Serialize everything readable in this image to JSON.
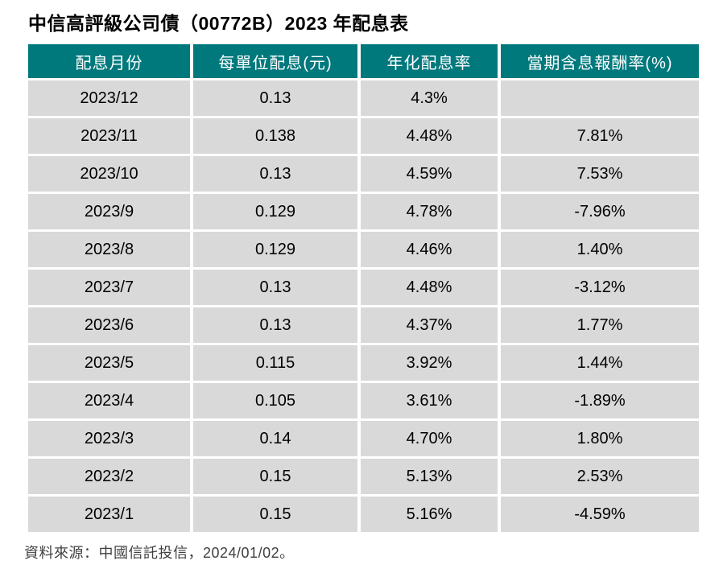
{
  "page": {
    "title": "中信高評級公司債（00772B）2023 年配息表",
    "source_note": "資料來源：中國信託投信，2024/01/02。"
  },
  "colors": {
    "page_bg": "#FFFFFF",
    "header_bg": "#00797D",
    "header_text": "#FFFFFF",
    "row_bg": "#D9D9D9",
    "body_text": "#000000",
    "title_color": "#000000",
    "note_text": "#404040"
  },
  "chart_data": {
    "type": "table",
    "title": "中信高評級公司債（00772B）2023 年配息表",
    "columns": [
      "配息月份",
      "每單位配息(元)",
      "年化配息率",
      "當期含息報酬率(%)"
    ],
    "rows": [
      {
        "month": "2023/12",
        "dividend_per_unit": "0.13",
        "annualized_yield": "4.3%",
        "period_total_return": ""
      },
      {
        "month": "2023/11",
        "dividend_per_unit": "0.138",
        "annualized_yield": "4.48%",
        "period_total_return": "7.81%"
      },
      {
        "month": "2023/10",
        "dividend_per_unit": "0.13",
        "annualized_yield": "4.59%",
        "period_total_return": "7.53%"
      },
      {
        "month": "2023/9",
        "dividend_per_unit": "0.129",
        "annualized_yield": "4.78%",
        "period_total_return": "-7.96%"
      },
      {
        "month": "2023/8",
        "dividend_per_unit": "0.129",
        "annualized_yield": "4.46%",
        "period_total_return": "1.40%"
      },
      {
        "month": "2023/7",
        "dividend_per_unit": "0.13",
        "annualized_yield": "4.48%",
        "period_total_return": "-3.12%"
      },
      {
        "month": "2023/6",
        "dividend_per_unit": "0.13",
        "annualized_yield": "4.37%",
        "period_total_return": "1.77%"
      },
      {
        "month": "2023/5",
        "dividend_per_unit": "0.115",
        "annualized_yield": "3.92%",
        "period_total_return": "1.44%"
      },
      {
        "month": "2023/4",
        "dividend_per_unit": "0.105",
        "annualized_yield": "3.61%",
        "period_total_return": "-1.89%"
      },
      {
        "month": "2023/3",
        "dividend_per_unit": "0.14",
        "annualized_yield": "4.70%",
        "period_total_return": "1.80%"
      },
      {
        "month": "2023/2",
        "dividend_per_unit": "0.15",
        "annualized_yield": "5.13%",
        "period_total_return": "2.53%"
      },
      {
        "month": "2023/1",
        "dividend_per_unit": "0.15",
        "annualized_yield": "5.16%",
        "period_total_return": "-4.59%"
      }
    ],
    "layout": {
      "header_position": "top",
      "cell_alignment": "center",
      "grid": "white-gutters"
    }
  }
}
